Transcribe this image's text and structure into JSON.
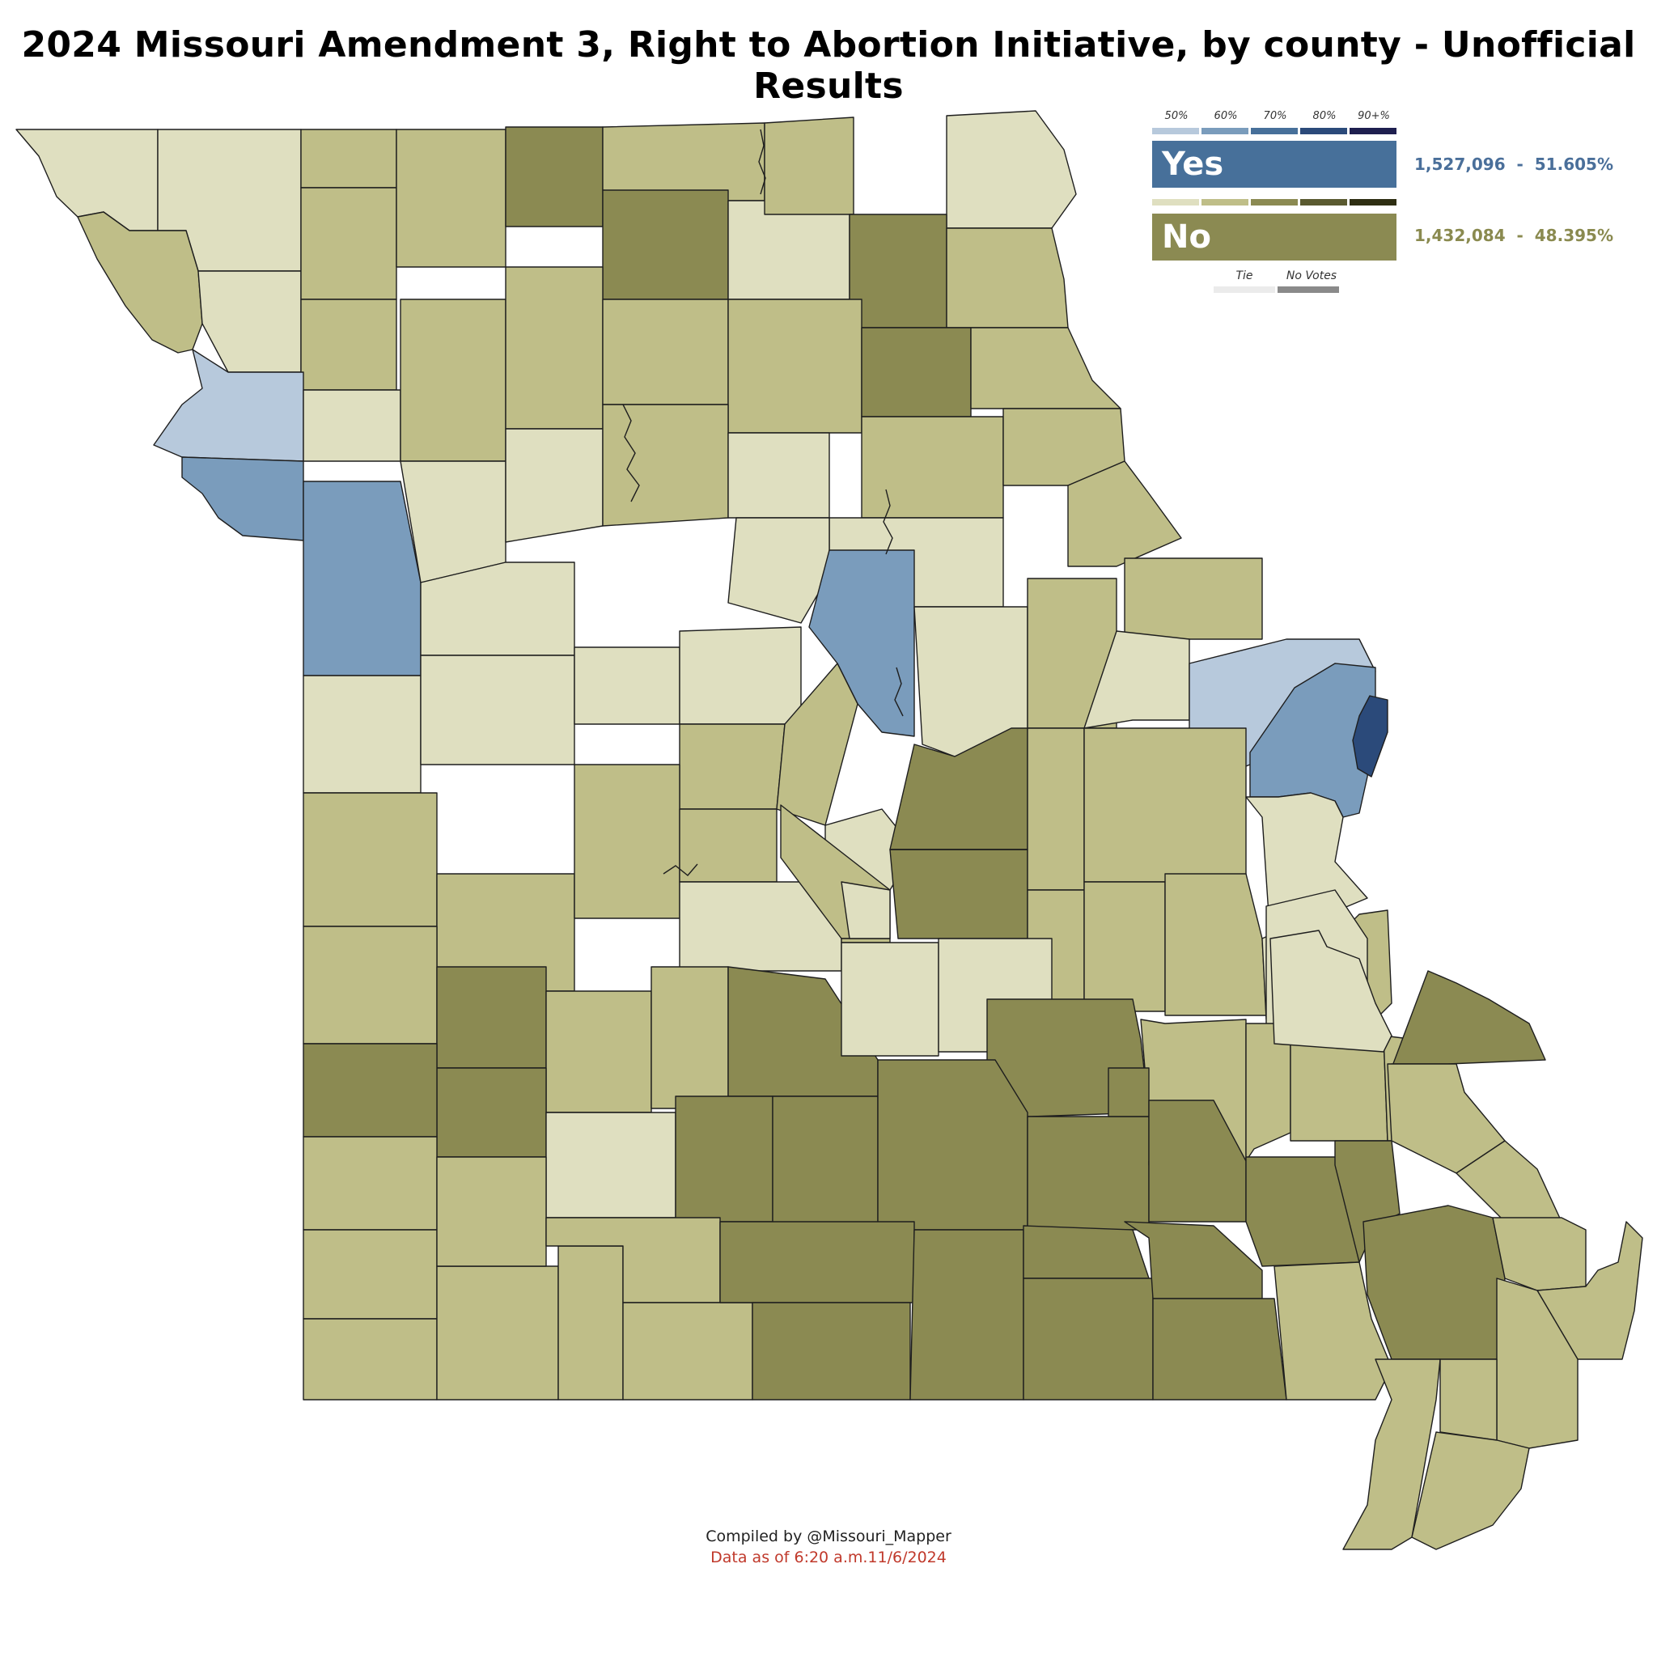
{
  "title": "2024 Missouri Amendment 3, Right to Abortion Initiative, by county - Unofficial Results",
  "legend": {
    "scale_labels": [
      "50%",
      "60%",
      "70%",
      "80%",
      "90+%"
    ],
    "yes": {
      "label": "Yes",
      "votes": "1,527,096",
      "percent": "51.605%",
      "text_color": "#4a6f9a",
      "box_color": "#47709a",
      "shades": [
        "#b7c9dc",
        "#7a9cbc",
        "#47709a",
        "#2b4a7a",
        "#1e1f4f"
      ]
    },
    "no": {
      "label": "No",
      "votes": "1,432,084",
      "percent": "48.395%",
      "text_color": "#8a8a4f",
      "box_color": "#8b8a52",
      "shades": [
        "#dfdfc0",
        "#bfbe88",
        "#8b8a52",
        "#5a5a30",
        "#2e2e12"
      ]
    },
    "tie_label": "Tie",
    "tie_color": "#ebebeb",
    "no_votes_label": "No Votes",
    "no_votes_color": "#8a8a8a"
  },
  "fill_by_class": {
    "yes_50": "#b7c9dc",
    "yes_60": "#7a9cbc",
    "yes_80": "#2b4a7a",
    "no_50": "#dfdfc0",
    "no_60": "#bfbe88",
    "no_70": "#8b8a52"
  },
  "credit": "Compiled by @Missouri_Mapper",
  "data_note": "Data as of 6:20 a.m.11/6/2024"
}
